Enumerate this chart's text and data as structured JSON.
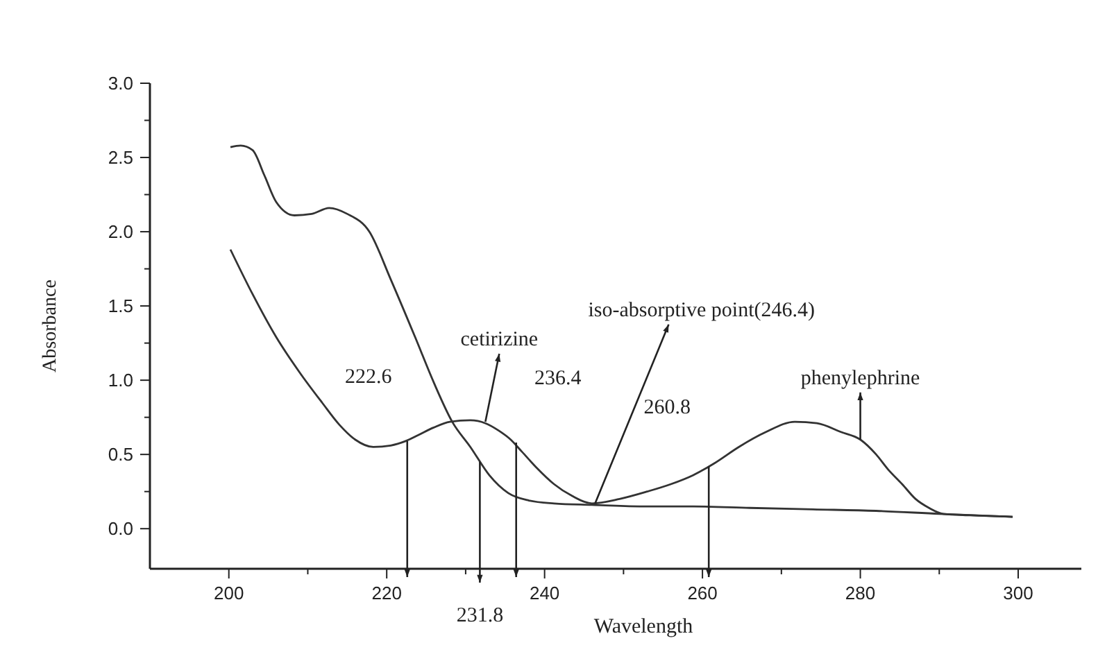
{
  "chart_data": {
    "type": "line",
    "xlabel": "Wavelength",
    "ylabel": "Absorbance",
    "xlim": [
      190,
      308
    ],
    "ylim": [
      -0.27,
      3.0
    ],
    "xticks": [
      {
        "value": 200,
        "label": "200"
      },
      {
        "value": 210,
        "label": null
      },
      {
        "value": 220,
        "label": "220"
      },
      {
        "value": 230,
        "label": null
      },
      {
        "value": 240,
        "label": "240"
      },
      {
        "value": 250,
        "label": null
      },
      {
        "value": 260,
        "label": "260"
      },
      {
        "value": 270,
        "label": null
      },
      {
        "value": 280,
        "label": "280"
      },
      {
        "value": 290,
        "label": null
      },
      {
        "value": 300,
        "label": "300"
      }
    ],
    "yticks": [
      {
        "value": 0,
        "label": "0.0"
      },
      {
        "value": 0.25,
        "label": null
      },
      {
        "value": 0.5,
        "label": "0.5"
      },
      {
        "value": 0.75,
        "label": null
      },
      {
        "value": 1,
        "label": "1.0"
      },
      {
        "value": 1.25,
        "label": null
      },
      {
        "value": 1.5,
        "label": "1.5"
      },
      {
        "value": 1.75,
        "label": null
      },
      {
        "value": 2,
        "label": "2.0"
      },
      {
        "value": 2.25,
        "label": null
      },
      {
        "value": 2.5,
        "label": "2.5"
      },
      {
        "value": 2.75,
        "label": null
      },
      {
        "value": 3,
        "label": "3.0"
      }
    ],
    "grid": false,
    "marker": "none",
    "line_style": "solid",
    "series": [
      {
        "color": "#333333",
        "x": [
          200.2,
          201.5,
          203,
          204.5,
          206,
          208.3,
          210.5,
          212.7,
          215,
          217.8,
          220.5,
          223.6,
          226,
          228.3,
          230.6,
          233,
          235.4,
          238,
          241.2,
          246,
          252,
          258.8,
          266,
          274,
          282,
          290,
          299.3
        ],
        "values": [
          2.57,
          2.58,
          2.55,
          2.38,
          2.2,
          2.11,
          2.12,
          2.16,
          2.12,
          2.0,
          1.68,
          1.29,
          0.98,
          0.72,
          0.55,
          0.36,
          0.24,
          0.19,
          0.17,
          0.16,
          0.15,
          0.15,
          0.14,
          0.13,
          0.12,
          0.1,
          0.08
        ]
      },
      {
        "color": "#333333",
        "x": [
          200.2,
          203,
          206,
          209,
          211.8,
          214,
          216,
          218.3,
          220.5,
          222.4,
          224,
          225.9,
          228,
          230.6,
          232.5,
          234.2,
          235.7,
          237.1,
          239,
          241.2,
          243.5,
          246,
          249.5,
          253,
          256,
          258.8,
          261.5,
          264.6,
          268,
          271.7,
          274.5,
          277.6,
          280,
          282,
          283.5,
          285.3,
          287,
          288.7,
          290.5,
          294,
          299.3
        ],
        "values": [
          1.88,
          1.58,
          1.29,
          1.05,
          0.85,
          0.7,
          0.6,
          0.55,
          0.56,
          0.59,
          0.63,
          0.68,
          0.72,
          0.73,
          0.71,
          0.66,
          0.6,
          0.52,
          0.41,
          0.3,
          0.22,
          0.17,
          0.2,
          0.25,
          0.3,
          0.36,
          0.44,
          0.55,
          0.65,
          0.72,
          0.71,
          0.65,
          0.6,
          0.5,
          0.4,
          0.3,
          0.2,
          0.14,
          0.1,
          0.09,
          0.08
        ]
      }
    ],
    "annotations": [
      {
        "text": "222.6",
        "x": 222.6,
        "y": 0.59
      },
      {
        "text": "231.8",
        "x": 231.8,
        "y": 0.45
      },
      {
        "text": "236.4",
        "x": 236.4,
        "y": 0.58
      },
      {
        "text": "260.8",
        "x": 260.8,
        "y": 0.42
      },
      {
        "text": "cetirizine",
        "x": 232.5,
        "y": 0.72
      },
      {
        "text": "iso-absorptive point(246.4)",
        "x": 246.4,
        "y": 0.17
      },
      {
        "text": "phenylephrine",
        "x": 280,
        "y": 0.6
      }
    ]
  }
}
